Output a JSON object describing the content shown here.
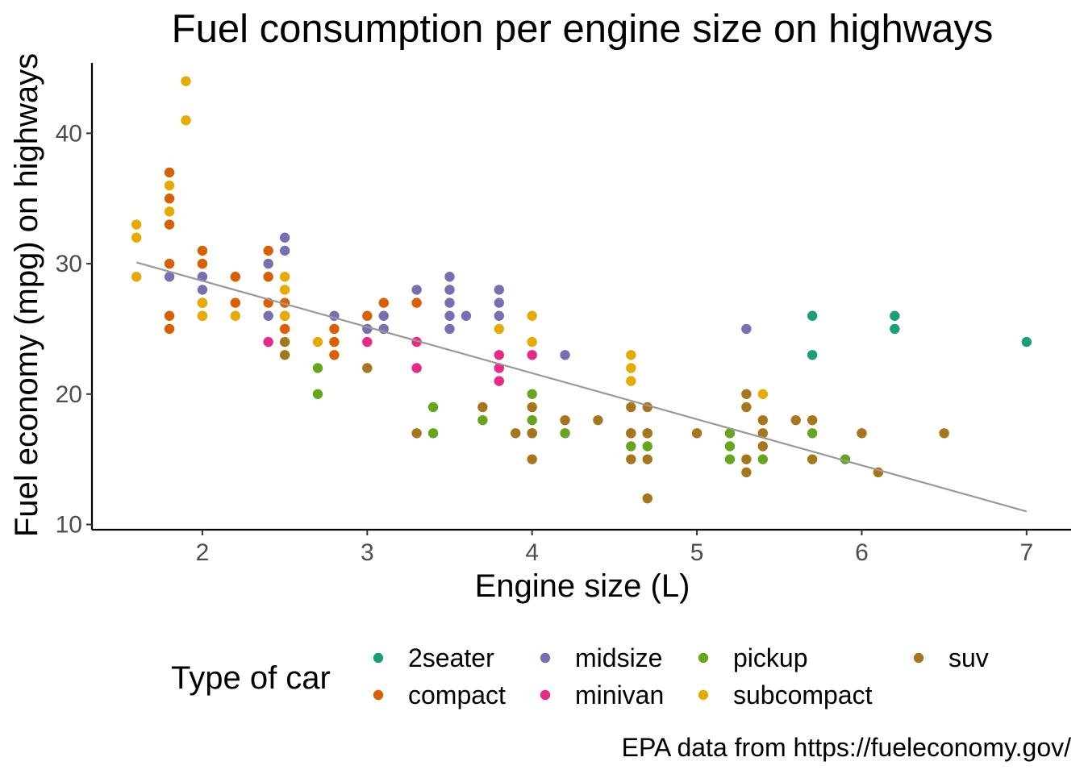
{
  "chart_data": {
    "type": "scatter",
    "title": "Fuel consumption per engine size on highways",
    "xlabel": "Engine size (L)",
    "ylabel": "Fuel economy (mpg) on highways",
    "caption": "EPA data from https://fueleconomy.gov/",
    "xlim": [
      1.33,
      7.27
    ],
    "ylim": [
      9.6,
      45.4
    ],
    "x_ticks": [
      2,
      3,
      4,
      5,
      6,
      7
    ],
    "y_ticks": [
      10,
      20,
      30,
      40
    ],
    "grid": false,
    "legend": {
      "title": "Type of car",
      "placement": "bottom",
      "entries": [
        {
          "name": "2seater",
          "color": "#1b9e77"
        },
        {
          "name": "compact",
          "color": "#d95f02"
        },
        {
          "name": "midsize",
          "color": "#7570b3"
        },
        {
          "name": "minivan",
          "color": "#e7298a"
        },
        {
          "name": "pickup",
          "color": "#66a61e"
        },
        {
          "name": "subcompact",
          "color": "#e6ab02"
        },
        {
          "name": "suv",
          "color": "#a6761d"
        }
      ]
    },
    "trend_line": {
      "color": "#999999",
      "points": [
        [
          1.6,
          30.1
        ],
        [
          7.0,
          11.0
        ]
      ]
    },
    "series": [
      {
        "name": "2seater",
        "color": "#1b9e77",
        "points": [
          [
            5.7,
            26
          ],
          [
            5.7,
            23
          ],
          [
            6.2,
            26
          ],
          [
            6.2,
            25
          ],
          [
            7.0,
            24
          ]
        ]
      },
      {
        "name": "compact",
        "color": "#d95f02",
        "points": [
          [
            1.8,
            37
          ],
          [
            1.8,
            35
          ],
          [
            1.8,
            33
          ],
          [
            1.8,
            30
          ],
          [
            1.8,
            26
          ],
          [
            1.8,
            25
          ],
          [
            2.0,
            31
          ],
          [
            2.0,
            30
          ],
          [
            2.0,
            29
          ],
          [
            2.0,
            27
          ],
          [
            2.0,
            26
          ],
          [
            2.2,
            29
          ],
          [
            2.2,
            27
          ],
          [
            2.4,
            31
          ],
          [
            2.4,
            29
          ],
          [
            2.4,
            27
          ],
          [
            2.5,
            27
          ],
          [
            2.5,
            26
          ],
          [
            2.5,
            25
          ],
          [
            2.8,
            25
          ],
          [
            2.8,
            24
          ],
          [
            2.8,
            23
          ],
          [
            3.0,
            26
          ],
          [
            3.1,
            27
          ],
          [
            3.3,
            27
          ]
        ]
      },
      {
        "name": "midsize",
        "color": "#7570b3",
        "points": [
          [
            1.8,
            29
          ],
          [
            2.0,
            29
          ],
          [
            2.0,
            28
          ],
          [
            2.4,
            30
          ],
          [
            2.4,
            26
          ],
          [
            2.5,
            32
          ],
          [
            2.5,
            31
          ],
          [
            2.8,
            26
          ],
          [
            3.0,
            25
          ],
          [
            3.1,
            26
          ],
          [
            3.1,
            25
          ],
          [
            3.3,
            28
          ],
          [
            3.5,
            29
          ],
          [
            3.5,
            28
          ],
          [
            3.5,
            27
          ],
          [
            3.5,
            26
          ],
          [
            3.5,
            25
          ],
          [
            3.6,
            26
          ],
          [
            3.8,
            28
          ],
          [
            3.8,
            27
          ],
          [
            3.8,
            26
          ],
          [
            4.2,
            23
          ],
          [
            5.3,
            25
          ]
        ]
      },
      {
        "name": "minivan",
        "color": "#e7298a",
        "points": [
          [
            2.4,
            24
          ],
          [
            3.0,
            24
          ],
          [
            3.3,
            24
          ],
          [
            3.3,
            22
          ],
          [
            3.8,
            23
          ],
          [
            3.8,
            22
          ],
          [
            3.8,
            21
          ],
          [
            4.0,
            23
          ]
        ]
      },
      {
        "name": "pickup",
        "color": "#66a61e",
        "points": [
          [
            2.7,
            22
          ],
          [
            2.7,
            20
          ],
          [
            3.4,
            19
          ],
          [
            3.4,
            17
          ],
          [
            3.7,
            18
          ],
          [
            4.0,
            20
          ],
          [
            4.0,
            18
          ],
          [
            4.0,
            17
          ],
          [
            4.2,
            17
          ],
          [
            4.6,
            17
          ],
          [
            4.6,
            16
          ],
          [
            4.7,
            17
          ],
          [
            4.7,
            16
          ],
          [
            5.2,
            17
          ],
          [
            5.2,
            16
          ],
          [
            5.2,
            15
          ],
          [
            5.4,
            15
          ],
          [
            5.7,
            17
          ],
          [
            5.9,
            15
          ]
        ]
      },
      {
        "name": "subcompact",
        "color": "#e6ab02",
        "points": [
          [
            1.6,
            33
          ],
          [
            1.6,
            32
          ],
          [
            1.6,
            29
          ],
          [
            1.8,
            36
          ],
          [
            1.8,
            34
          ],
          [
            1.9,
            44
          ],
          [
            1.9,
            41
          ],
          [
            2.0,
            27
          ],
          [
            2.0,
            26
          ],
          [
            2.2,
            26
          ],
          [
            2.5,
            29
          ],
          [
            2.5,
            28
          ],
          [
            2.5,
            26
          ],
          [
            2.7,
            24
          ],
          [
            3.8,
            25
          ],
          [
            4.0,
            26
          ],
          [
            4.0,
            24
          ],
          [
            4.6,
            23
          ],
          [
            4.6,
            22
          ],
          [
            4.6,
            21
          ],
          [
            5.4,
            20
          ]
        ]
      },
      {
        "name": "suv",
        "color": "#a6761d",
        "points": [
          [
            2.5,
            24
          ],
          [
            2.5,
            23
          ],
          [
            3.0,
            22
          ],
          [
            3.3,
            17
          ],
          [
            3.7,
            19
          ],
          [
            3.9,
            17
          ],
          [
            4.0,
            19
          ],
          [
            4.0,
            17
          ],
          [
            4.0,
            15
          ],
          [
            4.2,
            18
          ],
          [
            4.4,
            18
          ],
          [
            4.6,
            19
          ],
          [
            4.6,
            17
          ],
          [
            4.6,
            15
          ],
          [
            4.7,
            19
          ],
          [
            4.7,
            17
          ],
          [
            4.7,
            15
          ],
          [
            4.7,
            12
          ],
          [
            5.0,
            17
          ],
          [
            5.3,
            20
          ],
          [
            5.3,
            19
          ],
          [
            5.3,
            15
          ],
          [
            5.3,
            14
          ],
          [
            5.4,
            18
          ],
          [
            5.4,
            17
          ],
          [
            5.4,
            16
          ],
          [
            5.6,
            18
          ],
          [
            5.7,
            18
          ],
          [
            5.7,
            15
          ],
          [
            6.0,
            17
          ],
          [
            6.1,
            14
          ],
          [
            6.5,
            17
          ]
        ]
      }
    ]
  }
}
